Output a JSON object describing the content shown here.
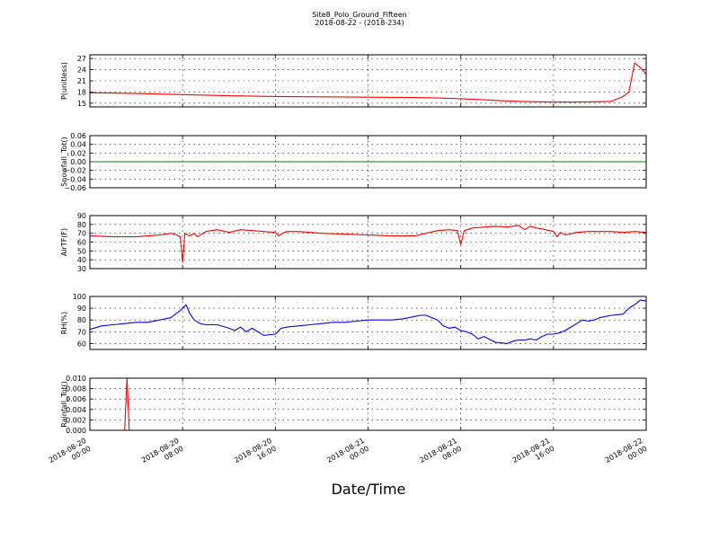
{
  "figure": {
    "title": "Site8_Polo_Ground_Fifteen",
    "subtitle": "2018-08-22 - (2018-234)",
    "xlabel": "Date/Time",
    "x_tick_labels": [
      [
        "2018-08-20",
        "00:00"
      ],
      [
        "2018-08-20",
        "08:00"
      ],
      [
        "2018-08-20",
        "16:00"
      ],
      [
        "2018-08-21",
        "00:00"
      ],
      [
        "2018-08-21",
        "08:00"
      ],
      [
        "2018-08-21",
        "16:00"
      ],
      [
        "2018-08-22",
        "00:00"
      ]
    ]
  },
  "chart_data": [
    {
      "type": "line",
      "ylabel": "P(unitless)",
      "ylim": [
        14,
        28
      ],
      "yticks": [
        15,
        18,
        21,
        24,
        27
      ],
      "ytick_labels": [
        "15",
        "18",
        "21",
        "24",
        "27"
      ],
      "grid": true,
      "x_unit": "hours since 2018-08-20 00:00",
      "xlim": [
        0,
        48
      ],
      "series": [
        {
          "color": "#ff0000",
          "x": [
            0,
            4,
            8,
            12,
            16,
            20,
            24,
            28,
            30,
            32,
            34,
            36,
            38,
            40,
            42,
            44,
            45,
            46,
            46.5,
            47,
            47.5,
            48
          ],
          "y": [
            17.8,
            17.6,
            17.3,
            17.0,
            16.8,
            16.7,
            16.6,
            16.5,
            16.4,
            16.2,
            15.9,
            15.6,
            15.4,
            15.3,
            15.3,
            15.4,
            15.5,
            16.8,
            18.0,
            25.8,
            24.5,
            22.8
          ]
        }
      ]
    },
    {
      "type": "line",
      "ylabel": "Snowfall_Tot()",
      "ylim": [
        -0.06,
        0.06
      ],
      "yticks": [
        -0.06,
        -0.04,
        -0.02,
        0.0,
        0.02,
        0.04,
        0.06
      ],
      "ytick_labels": [
        "−0.06",
        "−0.04",
        "−0.02",
        "0.00",
        "0.02",
        "0.04",
        "0.06"
      ],
      "grid": true,
      "x_unit": "hours since 2018-08-20 00:00",
      "xlim": [
        0,
        48
      ],
      "series": [
        {
          "color": "#008000",
          "style": "thick",
          "x": [
            0,
            48
          ],
          "y": [
            0,
            0
          ]
        }
      ]
    },
    {
      "type": "line",
      "ylabel": "AirTF(F)",
      "ylim": [
        30,
        90
      ],
      "yticks": [
        30,
        40,
        50,
        60,
        70,
        80,
        90
      ],
      "ytick_labels": [
        "30",
        "40",
        "50",
        "60",
        "70",
        "80",
        "90"
      ],
      "grid": true,
      "x_unit": "hours since 2018-08-20 00:00",
      "xlim": [
        0,
        48
      ],
      "series": [
        {
          "color": "#ff0000",
          "x": [
            0,
            2,
            4,
            5,
            6,
            7,
            7.5,
            7.8,
            8.0,
            8.2,
            8.6,
            9,
            9.3,
            10,
            10.5,
            11,
            12,
            13,
            14,
            15,
            16,
            16.3,
            16.6,
            17,
            18,
            20,
            22,
            24,
            26,
            28,
            29,
            30,
            31,
            31.7,
            32,
            32.3,
            33,
            34,
            35,
            36,
            37,
            37.5,
            38,
            38.5,
            39,
            40,
            40.3,
            40.6,
            41,
            42,
            43,
            44,
            45,
            46,
            47,
            48
          ],
          "y": [
            67,
            66,
            66,
            67,
            68,
            70,
            68,
            66,
            37,
            70,
            67,
            70,
            66,
            72,
            73,
            74,
            71,
            74,
            73,
            72,
            71,
            67,
            70,
            72,
            72,
            70,
            69,
            68,
            67,
            67,
            70,
            73,
            74,
            73,
            57,
            73,
            76,
            77,
            78,
            77,
            79,
            74,
            78,
            76,
            75,
            72,
            66,
            71,
            68,
            71,
            72,
            72,
            72,
            71,
            72,
            71
          ]
        }
      ]
    },
    {
      "type": "line",
      "ylabel": "RH(%)",
      "ylim": [
        55,
        100
      ],
      "yticks": [
        60,
        70,
        80,
        90,
        100
      ],
      "ytick_labels": [
        "60",
        "70",
        "80",
        "90",
        "100"
      ],
      "grid": true,
      "x_unit": "hours since 2018-08-20 00:00",
      "xlim": [
        0,
        48
      ],
      "series": [
        {
          "color": "#0000ff",
          "x": [
            0,
            1,
            2,
            3,
            4,
            5,
            6,
            6.5,
            7,
            7.5,
            7.8,
            8.0,
            8.3,
            8.6,
            9,
            9.5,
            10,
            11,
            12,
            12.5,
            13,
            13.5,
            14,
            15,
            16,
            16.5,
            17,
            18,
            19,
            20,
            21,
            22,
            23,
            24,
            25,
            26,
            27,
            28,
            28.5,
            29,
            29.5,
            30,
            30.5,
            31,
            31.5,
            32,
            32.5,
            33,
            33.5,
            34,
            35,
            36,
            36.5,
            37,
            37.5,
            38,
            38.5,
            39,
            39.5,
            40,
            40.5,
            41,
            41.5,
            42,
            42.5,
            43,
            43.5,
            44,
            45,
            46,
            46.5,
            47,
            47.5,
            48
          ],
          "y": [
            72,
            75,
            76,
            77,
            78,
            78,
            80,
            81,
            82,
            86,
            88,
            90,
            93,
            86,
            80,
            77,
            76,
            76,
            73,
            71,
            74,
            70,
            73,
            67,
            68,
            73,
            74,
            75,
            76,
            77,
            78,
            78,
            79,
            80,
            80,
            80,
            81,
            83,
            84,
            84,
            82,
            80,
            75,
            73,
            74,
            71,
            70,
            68,
            64,
            66,
            61,
            60,
            62,
            63,
            63,
            64,
            63,
            66,
            68,
            68,
            69,
            71,
            74,
            77,
            80,
            79,
            80,
            82,
            84,
            85,
            90,
            93,
            97,
            96
          ]
        }
      ]
    },
    {
      "type": "line",
      "ylabel": "Rainfall_Tot()",
      "ylim": [
        0,
        0.01
      ],
      "yticks": [
        0.0,
        0.002,
        0.004,
        0.006,
        0.008,
        0.01
      ],
      "ytick_labels": [
        "0.000",
        "0.002",
        "0.004",
        "0.006",
        "0.008",
        "0.010"
      ],
      "grid": true,
      "x_unit": "hours since 2018-08-20 00:00",
      "xlim": [
        0,
        48
      ],
      "series": [
        {
          "color": "#ff0000",
          "x": [
            0,
            3,
            3.2,
            3.4,
            48
          ],
          "y": [
            0,
            0,
            0.01,
            0,
            0
          ]
        }
      ]
    }
  ]
}
